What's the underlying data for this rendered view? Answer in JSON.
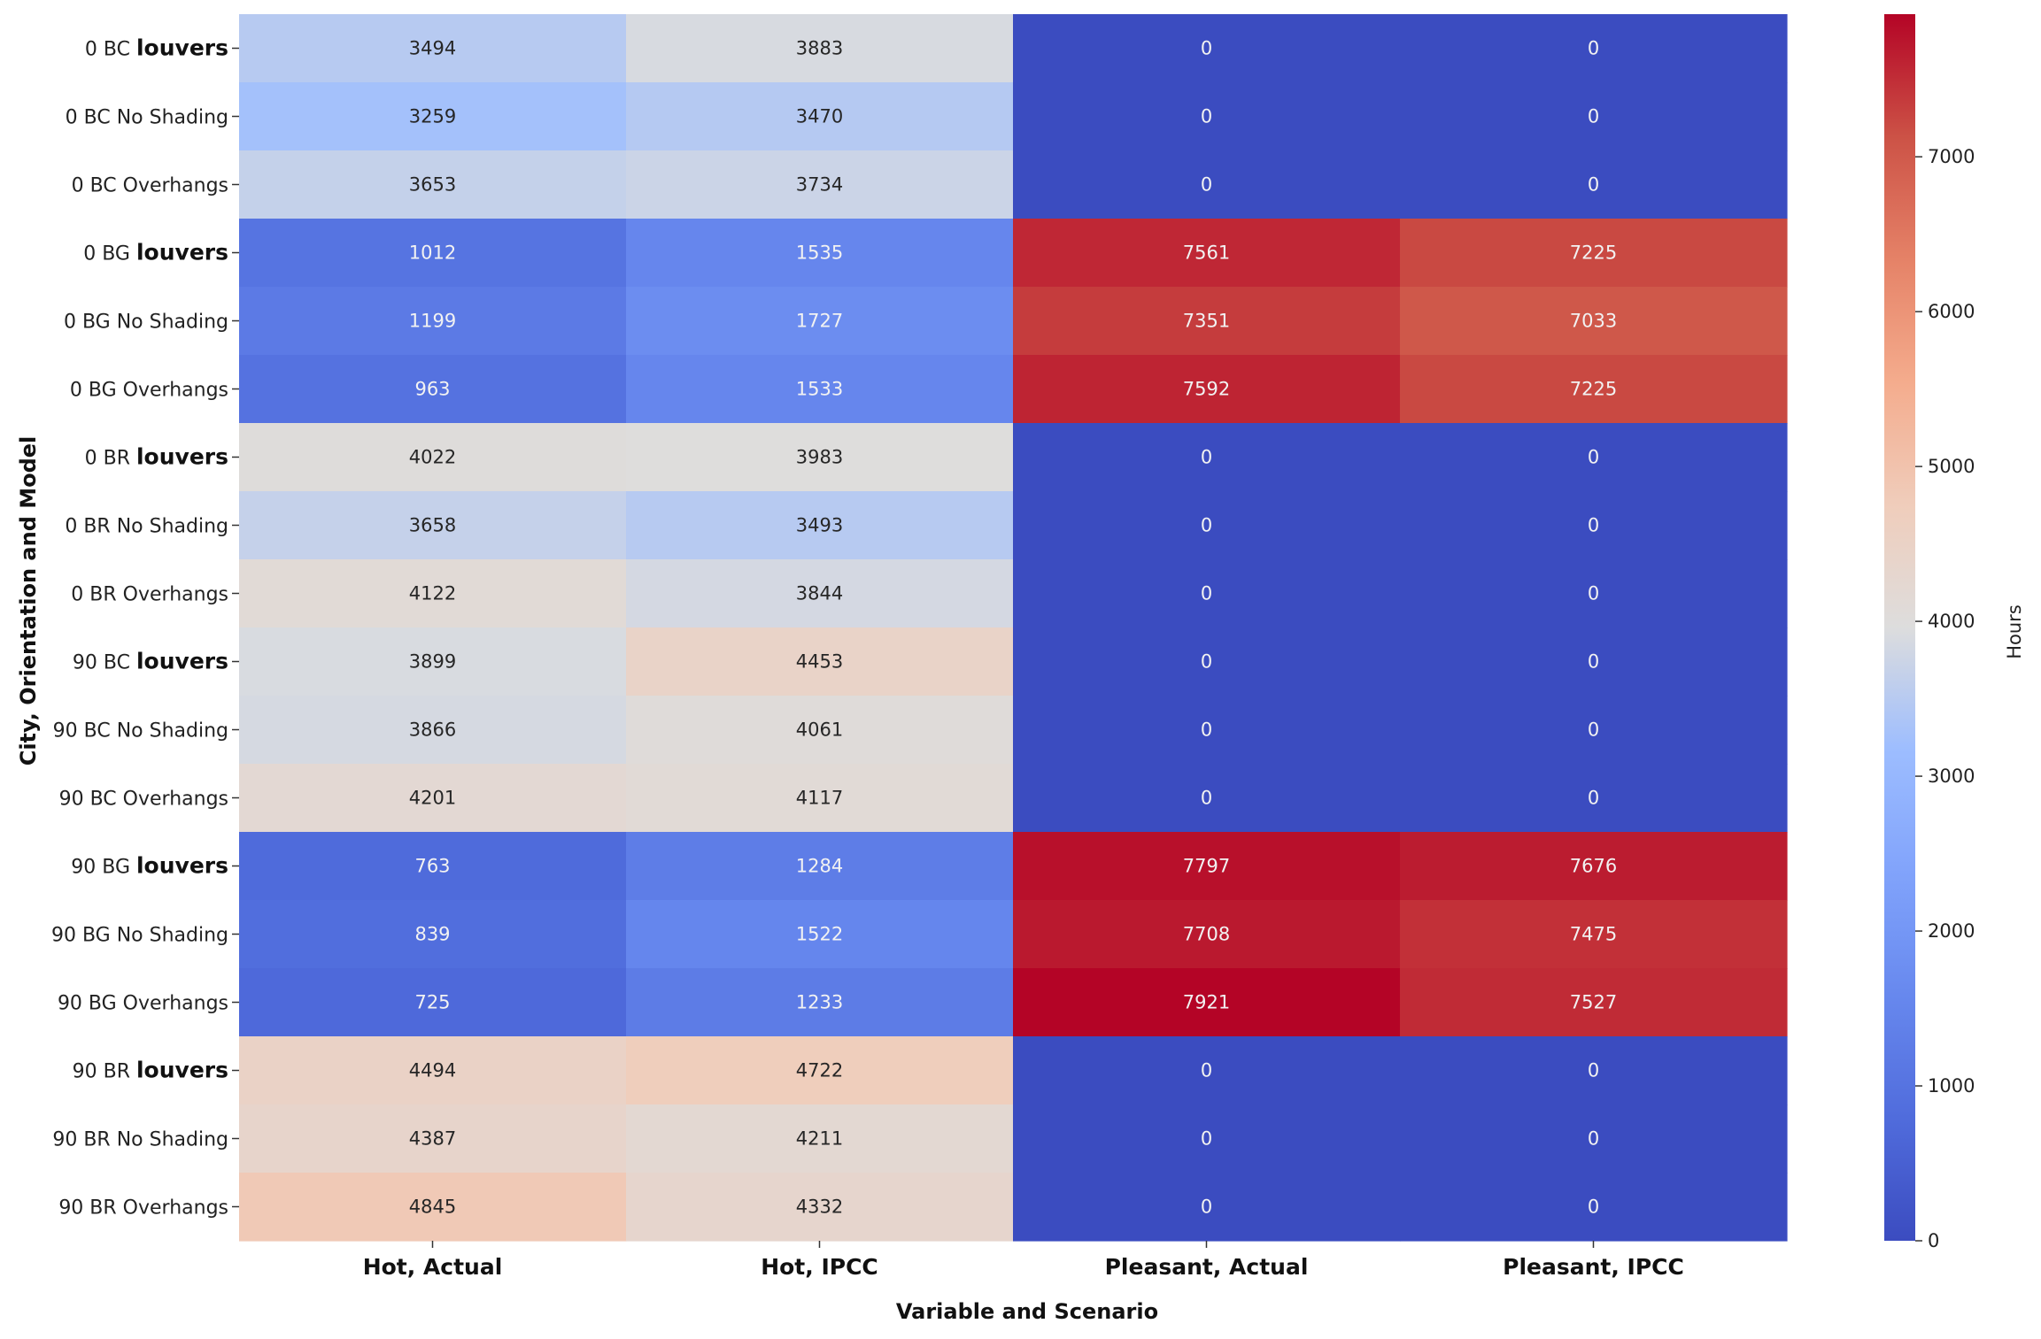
{
  "chart_data": {
    "type": "heatmap",
    "xlabel": "Variable and Scenario",
    "ylabel": "City, Orientation and Model",
    "columns": [
      "Hot, Actual",
      "Hot, IPCC",
      "Pleasant, Actual",
      "Pleasant, IPCC"
    ],
    "rows": [
      {
        "prefix": "0 BC",
        "model": "louvers",
        "values": [
          3494,
          3883,
          0,
          0
        ]
      },
      {
        "prefix": "0 BC",
        "model": "No Shading",
        "values": [
          3259,
          3470,
          0,
          0
        ]
      },
      {
        "prefix": "0 BC",
        "model": "Overhangs",
        "values": [
          3653,
          3734,
          0,
          0
        ]
      },
      {
        "prefix": "0 BG",
        "model": "louvers",
        "values": [
          1012,
          1535,
          7561,
          7225
        ]
      },
      {
        "prefix": "0 BG",
        "model": "No Shading",
        "values": [
          1199,
          1727,
          7351,
          7033
        ]
      },
      {
        "prefix": "0 BG",
        "model": "Overhangs",
        "values": [
          963,
          1533,
          7592,
          7225
        ]
      },
      {
        "prefix": "0 BR",
        "model": "louvers",
        "values": [
          4022,
          3983,
          0,
          0
        ]
      },
      {
        "prefix": "0 BR",
        "model": "No Shading",
        "values": [
          3658,
          3493,
          0,
          0
        ]
      },
      {
        "prefix": "0 BR",
        "model": "Overhangs",
        "values": [
          4122,
          3844,
          0,
          0
        ]
      },
      {
        "prefix": "90 BC",
        "model": "louvers",
        "values": [
          3899,
          4453,
          0,
          0
        ]
      },
      {
        "prefix": "90 BC",
        "model": "No Shading",
        "values": [
          3866,
          4061,
          0,
          0
        ]
      },
      {
        "prefix": "90 BC",
        "model": "Overhangs",
        "values": [
          4201,
          4117,
          0,
          0
        ]
      },
      {
        "prefix": "90 BG",
        "model": "louvers",
        "values": [
          763,
          1284,
          7797,
          7676
        ]
      },
      {
        "prefix": "90 BG",
        "model": "No Shading",
        "values": [
          839,
          1522,
          7708,
          7475
        ]
      },
      {
        "prefix": "90 BG",
        "model": "Overhangs",
        "values": [
          725,
          1233,
          7921,
          7527
        ]
      },
      {
        "prefix": "90 BR",
        "model": "louvers",
        "values": [
          4494,
          4722,
          0,
          0
        ]
      },
      {
        "prefix": "90 BR",
        "model": "No Shading",
        "values": [
          4387,
          4211,
          0,
          0
        ]
      },
      {
        "prefix": "90 BR",
        "model": "Overhangs",
        "values": [
          4845,
          4332,
          0,
          0
        ]
      }
    ],
    "colorbar": {
      "label": "Hours",
      "range": [
        0,
        7921
      ],
      "ticks": [
        0,
        1000,
        2000,
        3000,
        4000,
        5000,
        6000,
        7000
      ],
      "colormap": "coolwarm"
    }
  }
}
